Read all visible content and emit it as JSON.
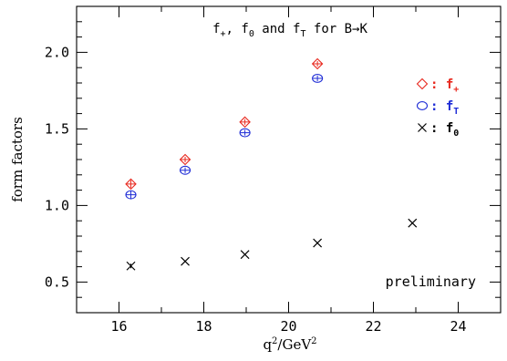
{
  "chart_data": {
    "type": "scatter",
    "title": "f+, f0 and fT for B→K",
    "xlabel": "q²/GeV²",
    "ylabel": "form factors",
    "xlim": [
      15,
      25
    ],
    "ylim": [
      0.3,
      2.3
    ],
    "x_ticks": [
      "16",
      "18",
      "20",
      "22",
      "24"
    ],
    "y_ticks": [
      "0.5",
      "1.0",
      "1.5",
      "2.0"
    ],
    "series": [
      {
        "name": "f+",
        "marker": "diamond",
        "color": "#e8281e",
        "x": [
          16.28,
          17.56,
          18.97,
          20.68
        ],
        "y": [
          1.14,
          1.3,
          1.545,
          1.925
        ],
        "err": [
          0.025,
          0.018,
          0.018,
          0.018
        ]
      },
      {
        "name": "fT",
        "marker": "circle",
        "color": "#1e2cd6",
        "x": [
          16.28,
          17.56,
          18.97,
          20.68
        ],
        "y": [
          1.07,
          1.23,
          1.475,
          1.83
        ],
        "err": [
          0.025,
          0.018,
          0.018,
          0.018
        ]
      },
      {
        "name": "f0",
        "marker": "cross",
        "color": "#000000",
        "x": [
          16.28,
          17.56,
          18.97,
          20.68,
          22.92
        ],
        "y": [
          0.605,
          0.635,
          0.68,
          0.755,
          0.885
        ],
        "err": [
          0.015,
          0,
          0,
          0,
          0
        ]
      }
    ],
    "legend": {
      "placement": "top-right",
      "entries": [
        {
          "prefix": ":",
          "main": "f",
          "sub": "+",
          "color": "#e8281e"
        },
        {
          "prefix": ":",
          "main": "f",
          "sub": "T",
          "color": "#1e2cd6"
        },
        {
          "prefix": ":",
          "main": "f",
          "sub": "0",
          "color": "#000000"
        }
      ]
    },
    "annotation": "preliminary",
    "grid": false
  }
}
